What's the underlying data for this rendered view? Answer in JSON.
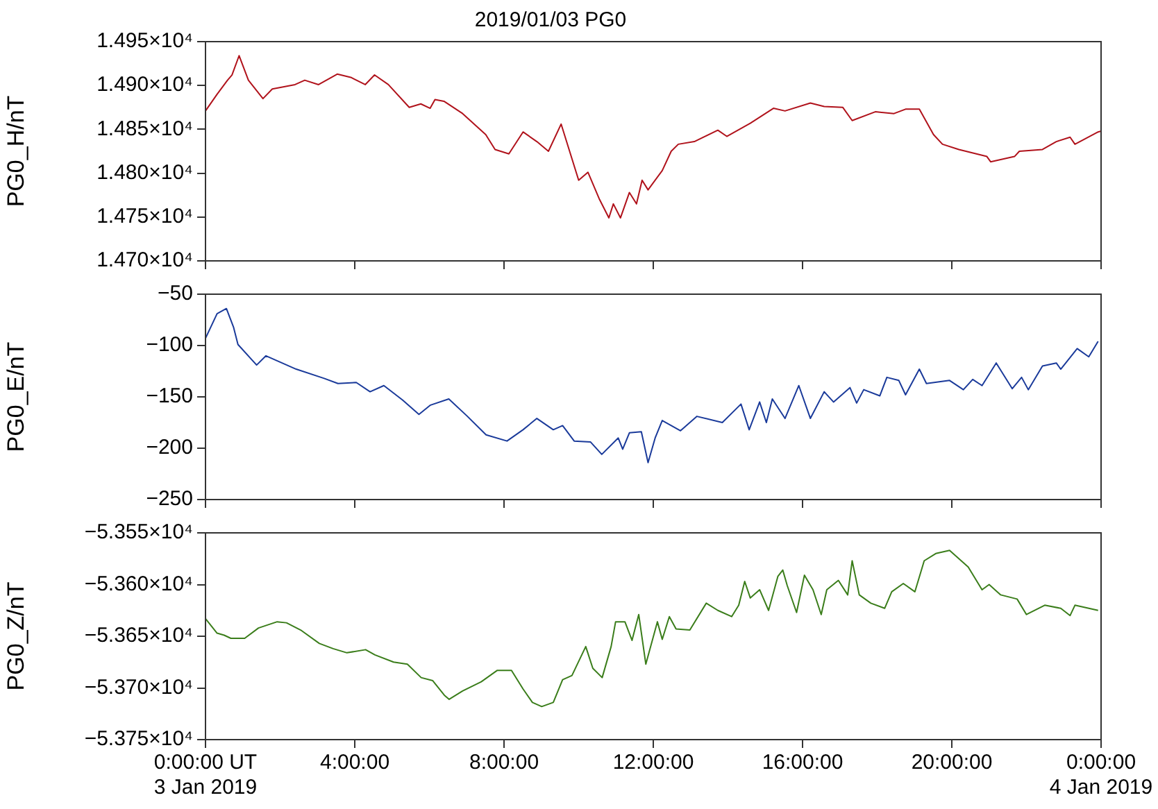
{
  "chart_data": [
    {
      "type": "line",
      "title": "2019/01/03 PG0",
      "ylabel": "PG0_H/nT",
      "color": "#b0121b",
      "tick_labels": "y",
      "x": [
        0,
        0.31,
        0.59,
        0.71,
        0.9,
        1.15,
        1.54,
        1.79,
        2.4,
        2.66,
        3.03,
        3.53,
        3.91,
        4.28,
        4.53,
        4.9,
        5.46,
        5.77,
        6.02,
        6.15,
        6.39,
        6.89,
        7.51,
        7.76,
        8.13,
        8.51,
        8.88,
        9.19,
        9.53,
        10.0,
        10.25,
        10.56,
        10.81,
        10.93,
        11.12,
        11.36,
        11.55,
        11.7,
        11.86,
        12.24,
        12.48,
        12.67,
        13.1,
        13.73,
        13.97,
        14.6,
        15.22,
        15.53,
        16.21,
        16.58,
        17.08,
        17.33,
        17.95,
        18.45,
        18.76,
        19.13,
        19.51,
        19.75,
        20.19,
        20.94,
        21.04,
        21.68,
        21.81,
        22.43,
        22.8,
        23.17,
        23.3,
        23.92,
        24
      ],
      "values": [
        14871,
        14890,
        14906,
        14912,
        14934,
        14906,
        14885,
        14896,
        14901,
        14906,
        14901,
        14913,
        14909,
        14901,
        14912,
        14901,
        14875,
        14879,
        14874,
        14884,
        14882,
        14868,
        14844,
        14827,
        14822,
        14847,
        14836,
        14825,
        14856,
        14792,
        14801,
        14770,
        14749,
        14765,
        14749,
        14778,
        14765,
        14792,
        14781,
        14803,
        14825,
        14833,
        14836,
        14849,
        14842,
        14857,
        14874,
        14871,
        14880,
        14876,
        14875,
        14860,
        14870,
        14868,
        14873,
        14873,
        14844,
        14833,
        14827,
        14819,
        14813,
        14819,
        14825,
        14827,
        14836,
        14841,
        14833,
        14847,
        14848
      ],
      "xlim": [
        0,
        24
      ],
      "xticks": [
        0,
        4,
        8,
        12,
        16,
        20,
        24
      ],
      "ylim": [
        14700,
        14950
      ],
      "yticks": [
        {
          "value": 14700,
          "label": "1.470×10⁴"
        },
        {
          "value": 14750,
          "label": "1.475×10⁴"
        },
        {
          "value": 14800,
          "label": "1.480×10⁴"
        },
        {
          "value": 14850,
          "label": "1.485×10⁴"
        },
        {
          "value": 14900,
          "label": "1.490×10⁴"
        },
        {
          "value": 14950,
          "label": "1.495×10⁴"
        }
      ]
    },
    {
      "type": "line",
      "ylabel": "PG0_E/nT",
      "color": "#1a3a9a",
      "tick_labels": "y",
      "x": [
        0,
        0.31,
        0.56,
        0.75,
        0.87,
        1.37,
        1.62,
        2.43,
        3.18,
        3.55,
        4.04,
        4.41,
        4.78,
        5.28,
        5.72,
        6.03,
        6.52,
        7.02,
        7.52,
        8.08,
        8.51,
        8.88,
        9.32,
        9.57,
        9.88,
        10.32,
        10.62,
        11.06,
        11.18,
        11.36,
        11.68,
        11.86,
        12.05,
        12.24,
        12.73,
        13.17,
        13.85,
        14.35,
        14.57,
        14.85,
        15.03,
        15.19,
        15.53,
        15.9,
        16.21,
        16.58,
        16.83,
        17.27,
        17.45,
        17.64,
        18.07,
        18.26,
        18.58,
        18.76,
        19.13,
        19.32,
        19.94,
        20.31,
        20.56,
        20.81,
        21.19,
        21.62,
        21.87,
        22.05,
        22.43,
        22.8,
        22.92,
        23.36,
        23.67,
        23.92
      ],
      "values": [
        -93,
        -69,
        -64,
        -82,
        -99,
        -119,
        -110,
        -123,
        -132,
        -137,
        -136,
        -145,
        -139,
        -153,
        -167,
        -158,
        -152,
        -169,
        -187,
        -193,
        -182,
        -171,
        -182,
        -178,
        -193,
        -194,
        -206,
        -190,
        -201,
        -185,
        -184,
        -214,
        -190,
        -173,
        -183,
        -169,
        -175,
        -157,
        -182,
        -155,
        -175,
        -152,
        -171,
        -139,
        -171,
        -145,
        -155,
        -141,
        -156,
        -143,
        -149,
        -131,
        -134,
        -148,
        -123,
        -137,
        -134,
        -143,
        -133,
        -139,
        -117,
        -142,
        -131,
        -143,
        -120,
        -117,
        -123,
        -103,
        -111,
        -96
      ],
      "xlim": [
        0,
        24
      ],
      "xticks": [
        0,
        4,
        8,
        12,
        16,
        20,
        24
      ],
      "ylim": [
        -250,
        -50
      ],
      "yticks": [
        {
          "value": -250,
          "label": "−250"
        },
        {
          "value": -200,
          "label": "−200"
        },
        {
          "value": -150,
          "label": "−150"
        },
        {
          "value": -100,
          "label": "−100"
        },
        {
          "value": -50,
          "label": "−50"
        }
      ]
    },
    {
      "type": "line",
      "ylabel": "PG0_Z/nT",
      "color": "#3a7d1a",
      "x": [
        0,
        0.31,
        0.5,
        0.68,
        1.05,
        1.42,
        1.92,
        2.17,
        2.55,
        3.05,
        3.42,
        3.79,
        4.29,
        4.54,
        5.04,
        5.41,
        5.78,
        6.09,
        6.4,
        6.53,
        6.89,
        7.39,
        7.82,
        8.2,
        8.51,
        8.76,
        9.01,
        9.32,
        9.57,
        9.82,
        10.19,
        10.38,
        10.63,
        10.87,
        10.99,
        11.24,
        11.43,
        11.61,
        11.8,
        12.11,
        12.24,
        12.43,
        12.61,
        12.98,
        13.42,
        13.73,
        14.1,
        14.29,
        14.45,
        14.6,
        14.85,
        15.09,
        15.34,
        15.47,
        15.59,
        15.84,
        16.05,
        16.28,
        16.5,
        16.65,
        16.96,
        17.21,
        17.33,
        17.52,
        17.83,
        18.2,
        18.39,
        18.7,
        19.01,
        19.26,
        19.57,
        19.94,
        20.44,
        20.81,
        21.0,
        21.31,
        21.75,
        22.0,
        22.49,
        22.92,
        23.17,
        23.3,
        23.92
      ],
      "values": [
        -53633,
        -53647,
        -53649,
        -53652,
        -53652,
        -53642,
        -53636,
        -53637,
        -53644,
        -53657,
        -53662,
        -53666,
        -53663,
        -53668,
        -53675,
        -53677,
        -53690,
        -53693,
        -53707,
        -53711,
        -53703,
        -53694,
        -53683,
        -53683,
        -53701,
        -53714,
        -53718,
        -53714,
        -53692,
        -53688,
        -53660,
        -53681,
        -53690,
        -53660,
        -53636,
        -53636,
        -53654,
        -53629,
        -53677,
        -53636,
        -53653,
        -53631,
        -53643,
        -53644,
        -53618,
        -53625,
        -53631,
        -53620,
        -53597,
        -53613,
        -53605,
        -53625,
        -53592,
        -53586,
        -53601,
        -53627,
        -53591,
        -53605,
        -53629,
        -53605,
        -53596,
        -53610,
        -53577,
        -53610,
        -53618,
        -53623,
        -53607,
        -53599,
        -53607,
        -53577,
        -53570,
        -53567,
        -53583,
        -53605,
        -53600,
        -53610,
        -53614,
        -53629,
        -53620,
        -53623,
        -53630,
        -53620,
        -53625
      ],
      "xlim": [
        0,
        24
      ],
      "xticks": [
        {
          "value": 0,
          "label": "0:00:00 UT\n3 Jan 2019"
        },
        {
          "value": 4,
          "label": "4:00:00"
        },
        {
          "value": 8,
          "label": "8:00:00"
        },
        {
          "value": 12,
          "label": "12:00:00"
        },
        {
          "value": 16,
          "label": "16:00:00"
        },
        {
          "value": 20,
          "label": "20:00:00"
        },
        {
          "value": 24,
          "label": "0:00:00\n4 Jan 2019"
        }
      ],
      "ylim": [
        -53750,
        -53550
      ],
      "yticks": [
        {
          "value": -53750,
          "label": "−5.375×10⁴"
        },
        {
          "value": -53700,
          "label": "−5.370×10⁴"
        },
        {
          "value": -53650,
          "label": "−5.365×10⁴"
        },
        {
          "value": -53600,
          "label": "−5.360×10⁴"
        },
        {
          "value": -53550,
          "label": "−5.355×10⁴"
        }
      ]
    }
  ]
}
